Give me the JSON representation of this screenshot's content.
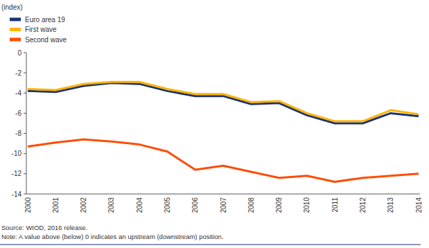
{
  "chart_data": {
    "type": "line",
    "y_label": "(index)",
    "categories": [
      "2000",
      "2001",
      "2002",
      "2003",
      "2004",
      "2005",
      "2006",
      "2007",
      "2008",
      "2009",
      "2010",
      "2011",
      "2012",
      "2013",
      "2014"
    ],
    "series": [
      {
        "name": "Euro area 19",
        "color": "#1d3370",
        "values": [
          -3.8,
          -3.9,
          -3.3,
          -3.0,
          -3.1,
          -3.8,
          -4.3,
          -4.3,
          -5.1,
          -5.0,
          -6.2,
          -7.0,
          -7.0,
          -6.0,
          -6.3
        ]
      },
      {
        "name": "First wave",
        "color": "#ffb400",
        "values": [
          -3.6,
          -3.7,
          -3.1,
          -2.9,
          -2.9,
          -3.6,
          -4.1,
          -4.1,
          -4.9,
          -4.8,
          -6.0,
          -6.8,
          -6.8,
          -5.7,
          -6.1
        ]
      },
      {
        "name": "Second wave",
        "color": "#ff4b00",
        "values": [
          -9.3,
          -8.9,
          -8.6,
          -8.8,
          -9.1,
          -9.8,
          -11.6,
          -11.2,
          -11.8,
          -12.4,
          -12.2,
          -12.8,
          -12.4,
          -12.2,
          -12.0
        ]
      }
    ],
    "ylim": [
      -14,
      0
    ],
    "yticks": [
      -14,
      -12,
      -10,
      -8,
      -6,
      -4,
      -2,
      0
    ],
    "grid": false,
    "legend": "top-left",
    "source": "Source: WIOD, 2016 release.",
    "note": "Note: A value above (below) 0 indicates an upstream (downstream) position."
  }
}
